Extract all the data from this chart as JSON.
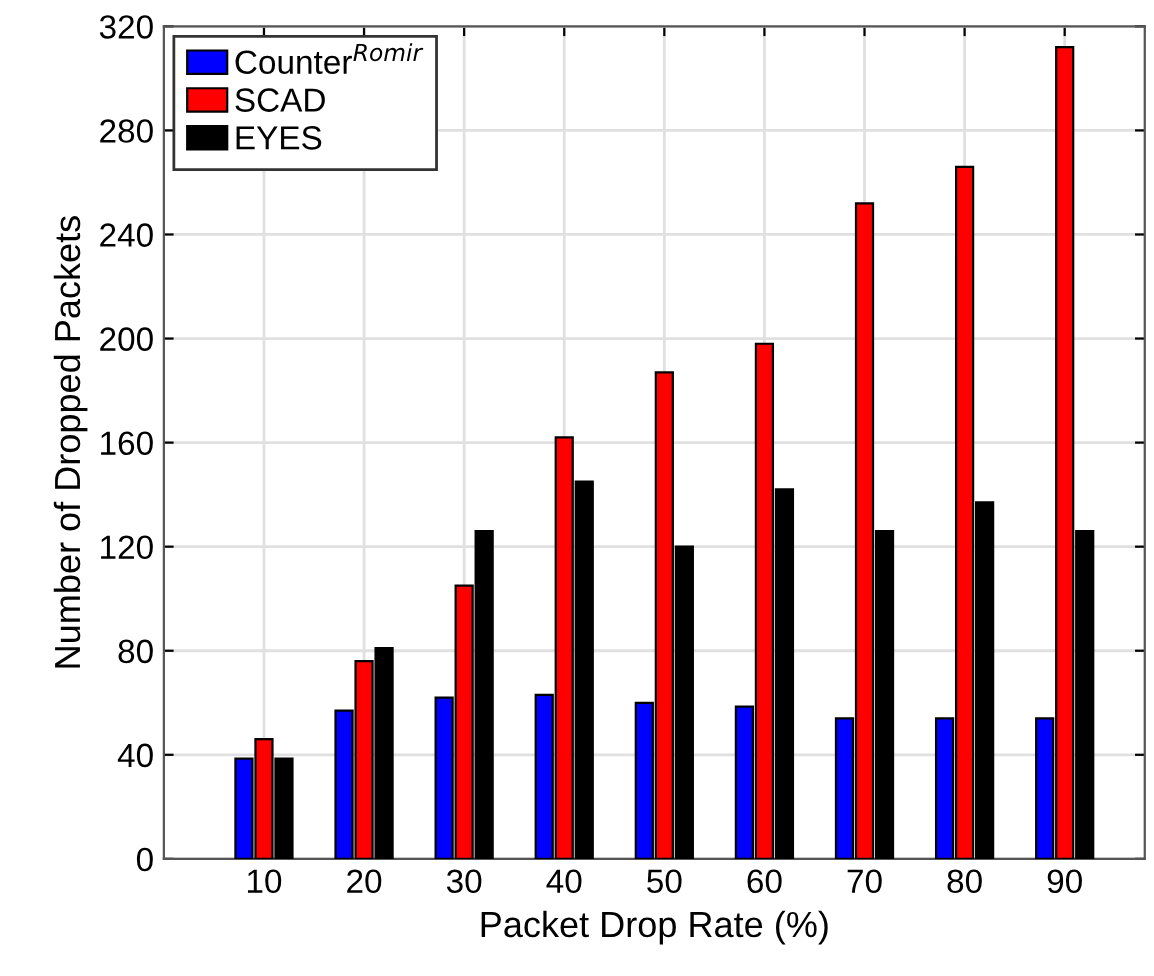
{
  "chart_data": {
    "type": "bar",
    "xlabel": "Packet Drop Rate (%)",
    "ylabel": "Number of Dropped Packets",
    "categories": [
      "10",
      "20",
      "30",
      "40",
      "50",
      "60",
      "70",
      "80",
      "90"
    ],
    "series": [
      {
        "name": "Counter$^{Romir}$",
        "color": "#0000ff",
        "values": [
          38.5,
          57,
          62,
          63,
          60,
          58.5,
          54,
          54,
          54
        ]
      },
      {
        "name": "SCAD",
        "color": "#ff0000",
        "values": [
          46,
          76,
          105,
          162,
          187,
          198,
          252,
          266,
          312
        ]
      },
      {
        "name": "EYES",
        "color": "#000000",
        "values": [
          38.5,
          81,
          126,
          145,
          120,
          142,
          126,
          137,
          126
        ]
      }
    ],
    "ylim": [
      0,
      320
    ],
    "yticks": [
      0,
      40,
      80,
      120,
      160,
      200,
      240,
      280,
      320
    ],
    "grid": true,
    "legend": "top left"
  }
}
